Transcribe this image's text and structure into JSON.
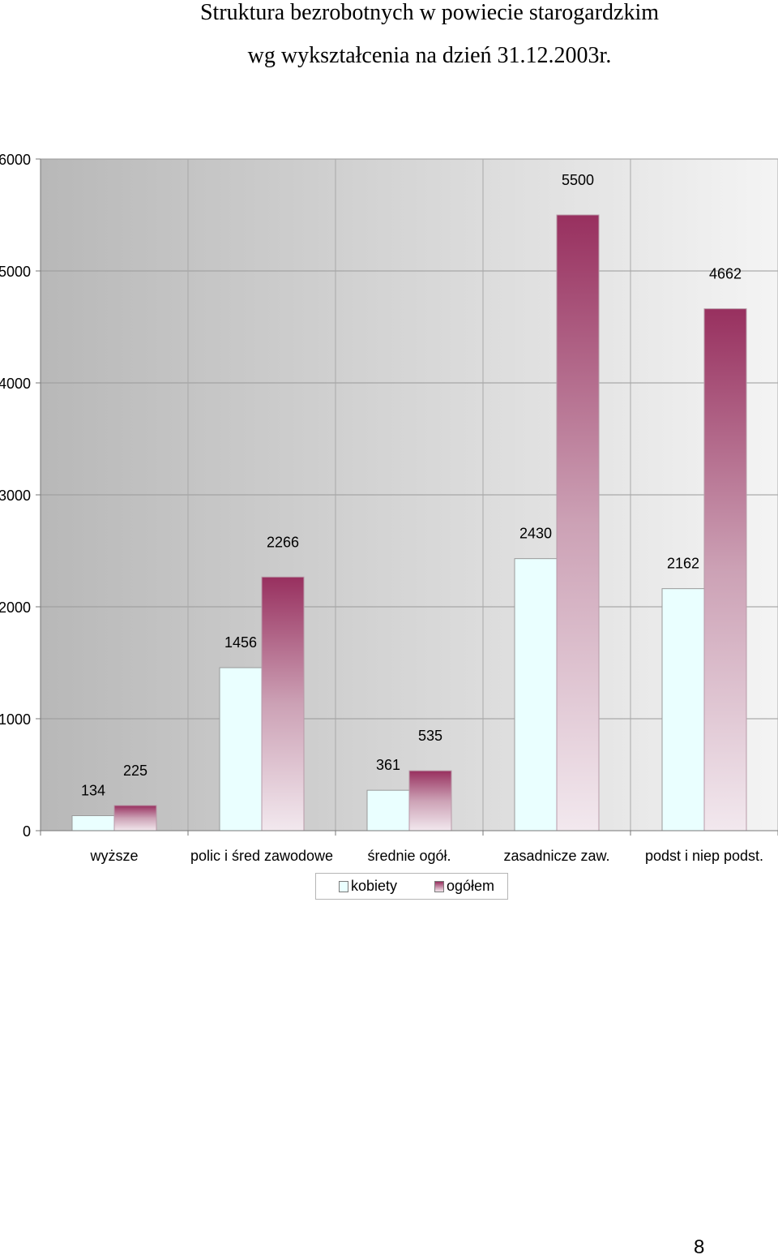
{
  "page": {
    "title_line1": "Struktura bezrobotnych w powiecie starogardzkim",
    "title_line2": "wg wykształcenia na dzień 31.12.2003r.",
    "page_number": "8"
  },
  "chart_data": {
    "type": "bar",
    "title": "Struktura bezrobotnych w powiecie starogardzkim wg wykształcenia na dzień 31.12.2003r.",
    "categories": [
      "wyższe",
      "polic i śred zawodowe",
      "średnie ogół.",
      "zasadnicze zaw.",
      "podst i niep podst."
    ],
    "series": [
      {
        "name": "kobiety",
        "values": [
          134,
          1456,
          361,
          2430,
          2162
        ],
        "color": "#eaffff"
      },
      {
        "name": "ogółem",
        "values": [
          225,
          2266,
          535,
          5500,
          4662
        ],
        "color": "#98305f"
      }
    ],
    "yticks": [
      0,
      1000,
      2000,
      3000,
      4000,
      5000,
      6000
    ],
    "ylim": [
      0,
      6000
    ],
    "grid": true,
    "legend": "bottom"
  }
}
